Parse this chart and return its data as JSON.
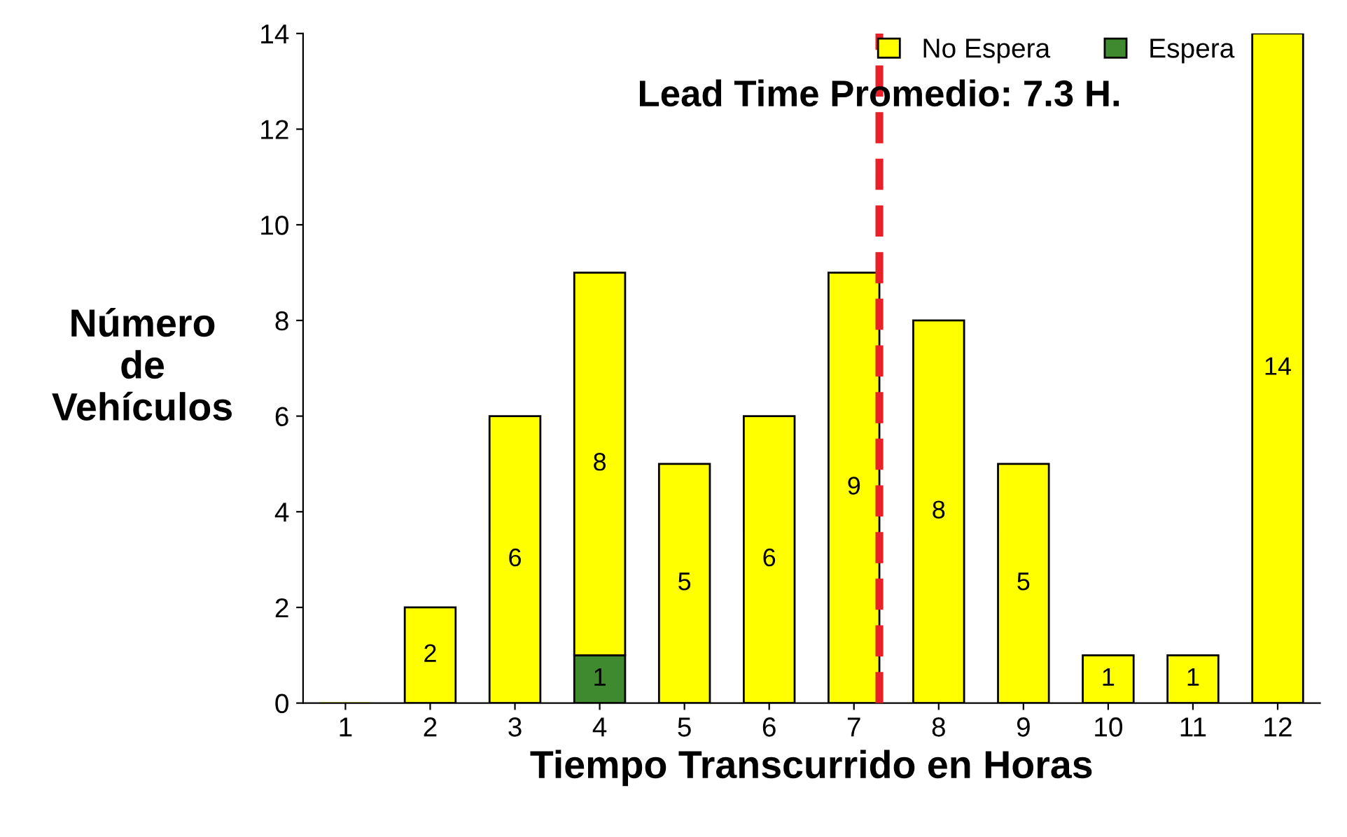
{
  "chart_data": {
    "type": "bar",
    "stacked": true,
    "xlabel": "Tiempo Transcurrido en Horas",
    "ylabel": "Número\nde\nVehículos",
    "x": [
      1,
      2,
      3,
      4,
      5,
      6,
      7,
      8,
      9,
      10,
      11,
      12
    ],
    "xlim": [
      0.5,
      12.5
    ],
    "xticks": [
      1,
      2,
      3,
      4,
      5,
      6,
      7,
      8,
      9,
      10,
      11,
      12
    ],
    "ylim": [
      0,
      14
    ],
    "yticks": [
      0,
      2,
      4,
      6,
      8,
      10,
      12,
      14
    ],
    "series": [
      {
        "name": "Espera",
        "color": "#3f8a2e",
        "values": [
          null,
          null,
          null,
          1,
          null,
          null,
          null,
          null,
          null,
          null,
          null,
          null
        ],
        "value_labels": [
          null,
          null,
          null,
          "1",
          null,
          null,
          null,
          null,
          null,
          null,
          null,
          null
        ]
      },
      {
        "name": "No Espera",
        "color": "#ffff00",
        "values": [
          0,
          2,
          6,
          8,
          5,
          6,
          9,
          8,
          5,
          1,
          1,
          14
        ],
        "value_labels": [
          null,
          "2",
          "6",
          "8",
          "5",
          "6",
          "9",
          "8",
          "5",
          "1",
          "1",
          "14"
        ]
      }
    ],
    "ref_lines": [
      {
        "axis": "x",
        "value": 7.3,
        "label": "Lead Time Promedio: 7.3 H.",
        "color": "#e8202a",
        "line_style": "dashed"
      }
    ],
    "legend": "top right",
    "grid": false
  }
}
